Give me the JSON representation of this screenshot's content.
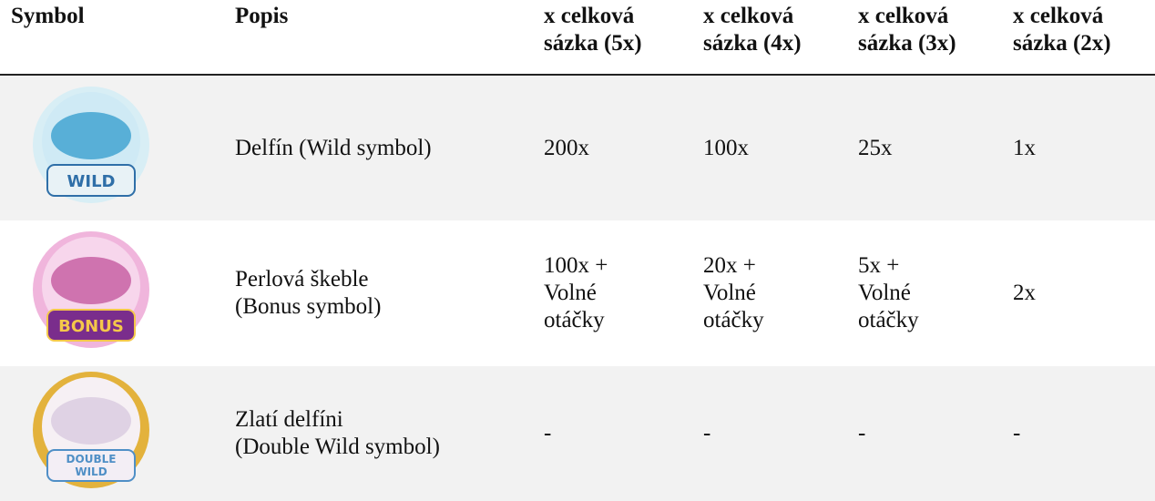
{
  "table": {
    "headers": [
      "Symbol",
      "Popis",
      "x celková\nsázka (5x)",
      "x celková\nsázka (4x)",
      "x celková\nsázka (3x)",
      "x celková\nsázka (2x)"
    ],
    "rows": [
      {
        "icon_label": "WILD",
        "cells": [
          "Delfín (Wild symbol)",
          "200x",
          "100x",
          "25x",
          "1x"
        ]
      },
      {
        "icon_label": "BONUS",
        "cells": [
          "Perlová škeble\n(Bonus symbol)",
          "100x +\nVolné\notáčky",
          "20x +\nVolné\notáčky",
          "5x +\nVolné\notáčky",
          "2x"
        ]
      },
      {
        "icon_label": "DOUBLE\nWILD",
        "cells": [
          "Zlatí delfíni\n(Double Wild symbol)",
          "-",
          "-",
          "-",
          "-"
        ]
      }
    ]
  }
}
